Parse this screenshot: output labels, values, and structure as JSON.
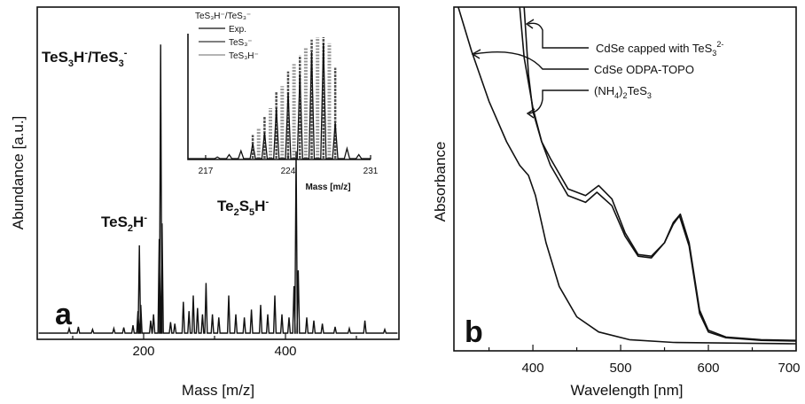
{
  "chart_data": [
    {
      "type": "line",
      "panel_label": "a",
      "xlabel": "Mass [m/z]",
      "ylabel": "Abundance [a.u.]",
      "xlim": [
        50,
        560
      ],
      "ylim": [
        0,
        1.0
      ],
      "x_ticks": [
        "200",
        "400"
      ],
      "x_tick_values": [
        200,
        400
      ],
      "series": [
        {
          "values": [
            {
              "x": 95,
              "y": 0.015
            },
            {
              "x": 108,
              "y": 0.02
            },
            {
              "x": 128,
              "y": 0.012
            },
            {
              "x": 158,
              "y": 0.015
            },
            {
              "x": 172,
              "y": 0.018
            },
            {
              "x": 185,
              "y": 0.025
            },
            {
              "x": 192,
              "y": 0.07
            },
            {
              "x": 194,
              "y": 0.28
            },
            {
              "x": 196,
              "y": 0.09
            },
            {
              "x": 210,
              "y": 0.04
            },
            {
              "x": 214,
              "y": 0.06
            },
            {
              "x": 222,
              "y": 0.3
            },
            {
              "x": 224,
              "y": 0.92
            },
            {
              "x": 226,
              "y": 0.35
            },
            {
              "x": 238,
              "y": 0.035
            },
            {
              "x": 244,
              "y": 0.03
            },
            {
              "x": 256,
              "y": 0.1
            },
            {
              "x": 264,
              "y": 0.07
            },
            {
              "x": 270,
              "y": 0.12
            },
            {
              "x": 276,
              "y": 0.08
            },
            {
              "x": 283,
              "y": 0.06
            },
            {
              "x": 288,
              "y": 0.16
            },
            {
              "x": 297,
              "y": 0.06
            },
            {
              "x": 306,
              "y": 0.05
            },
            {
              "x": 320,
              "y": 0.12
            },
            {
              "x": 330,
              "y": 0.06
            },
            {
              "x": 342,
              "y": 0.05
            },
            {
              "x": 352,
              "y": 0.075
            },
            {
              "x": 365,
              "y": 0.09
            },
            {
              "x": 375,
              "y": 0.06
            },
            {
              "x": 385,
              "y": 0.12
            },
            {
              "x": 395,
              "y": 0.06
            },
            {
              "x": 405,
              "y": 0.05
            },
            {
              "x": 412,
              "y": 0.15
            },
            {
              "x": 415,
              "y": 0.58
            },
            {
              "x": 418,
              "y": 0.2
            },
            {
              "x": 430,
              "y": 0.05
            },
            {
              "x": 440,
              "y": 0.04
            },
            {
              "x": 452,
              "y": 0.03
            },
            {
              "x": 470,
              "y": 0.02
            },
            {
              "x": 490,
              "y": 0.015
            },
            {
              "x": 512,
              "y": 0.04
            },
            {
              "x": 540,
              "y": 0.012
            }
          ]
        }
      ],
      "annotations": [
        {
          "text_main": "TeS",
          "sub1": "3",
          "mid": "H",
          "sup1": "-",
          "text_sep": "/TeS",
          "sub2": "3",
          "sup2": "-",
          "x": 224
        },
        {
          "text_main": "TeS",
          "sub1": "2",
          "mid": "H",
          "sup1": "-",
          "x": 194
        },
        {
          "text_main": "Te",
          "sub1": "2",
          "mid": "S",
          "sub2": "5",
          "tail": "H",
          "sup1": "-",
          "x": 415
        }
      ],
      "inset": {
        "title": "TeS₃H⁻/TeS₃⁻",
        "xlabel": "Mass [m/z]",
        "xlim": [
          215.5,
          231
        ],
        "x_ticks": [
          "217",
          "224",
          "231"
        ],
        "x_tick_values": [
          217,
          224,
          231
        ],
        "legend": [
          "Exp.",
          "TeS₃⁻",
          "TeS₃H⁻"
        ],
        "exp_values": [
          {
            "x": 218,
            "y": 0.02
          },
          {
            "x": 219,
            "y": 0.04
          },
          {
            "x": 220,
            "y": 0.07
          },
          {
            "x": 221,
            "y": 0.13
          },
          {
            "x": 222,
            "y": 0.22
          },
          {
            "x": 223,
            "y": 0.42
          },
          {
            "x": 224,
            "y": 0.55
          },
          {
            "x": 225,
            "y": 0.7
          },
          {
            "x": 226,
            "y": 0.88
          },
          {
            "x": 227,
            "y": 0.95
          },
          {
            "x": 228,
            "y": 0.3
          },
          {
            "x": 229,
            "y": 0.09
          },
          {
            "x": 230,
            "y": 0.04
          }
        ],
        "tes3_values": [
          {
            "x": 221,
            "y": 0.2
          },
          {
            "x": 222,
            "y": 0.35
          },
          {
            "x": 223,
            "y": 0.55
          },
          {
            "x": 224,
            "y": 0.72
          },
          {
            "x": 225,
            "y": 0.85
          },
          {
            "x": 226,
            "y": 0.98
          },
          {
            "x": 227,
            "y": 1.0
          },
          {
            "x": 228,
            "y": 0.75
          }
        ],
        "tes3h_values": [
          {
            "x": 221.5,
            "y": 0.25
          },
          {
            "x": 222.5,
            "y": 0.42
          },
          {
            "x": 223.5,
            "y": 0.6
          },
          {
            "x": 224.5,
            "y": 0.78
          },
          {
            "x": 225.5,
            "y": 0.92
          },
          {
            "x": 226.5,
            "y": 1.0
          },
          {
            "x": 227.5,
            "y": 0.95
          }
        ]
      }
    },
    {
      "type": "line",
      "panel_label": "b",
      "xlabel": "Wavelength [nm]",
      "ylabel": "Absorbance",
      "xlim": [
        310,
        700
      ],
      "ylim": [
        0,
        1.0
      ],
      "x_ticks": [
        "400",
        "500",
        "600",
        "700"
      ],
      "x_tick_values": [
        400,
        500,
        600,
        700
      ],
      "series": [
        {
          "name": "CdSe capped with TeS₃²⁻",
          "values": [
            {
              "x": 390,
              "y": 1.0
            },
            {
              "x": 395,
              "y": 0.8
            },
            {
              "x": 400,
              "y": 0.69
            },
            {
              "x": 410,
              "y": 0.6
            },
            {
              "x": 420,
              "y": 0.55
            },
            {
              "x": 440,
              "y": 0.46
            },
            {
              "x": 460,
              "y": 0.44
            },
            {
              "x": 475,
              "y": 0.47
            },
            {
              "x": 490,
              "y": 0.43
            },
            {
              "x": 505,
              "y": 0.33
            },
            {
              "x": 520,
              "y": 0.265
            },
            {
              "x": 535,
              "y": 0.26
            },
            {
              "x": 550,
              "y": 0.3
            },
            {
              "x": 560,
              "y": 0.36
            },
            {
              "x": 568,
              "y": 0.385
            },
            {
              "x": 578,
              "y": 0.3
            },
            {
              "x": 590,
              "y": 0.1
            },
            {
              "x": 600,
              "y": 0.04
            },
            {
              "x": 620,
              "y": 0.02
            },
            {
              "x": 660,
              "y": 0.012
            },
            {
              "x": 700,
              "y": 0.01
            }
          ]
        },
        {
          "name": "CdSe ODPA-TOPO",
          "values": [
            {
              "x": 385,
              "y": 1.0
            },
            {
              "x": 390,
              "y": 0.85
            },
            {
              "x": 400,
              "y": 0.7
            },
            {
              "x": 410,
              "y": 0.6
            },
            {
              "x": 420,
              "y": 0.53
            },
            {
              "x": 440,
              "y": 0.44
            },
            {
              "x": 460,
              "y": 0.42
            },
            {
              "x": 473,
              "y": 0.45
            },
            {
              "x": 490,
              "y": 0.41
            },
            {
              "x": 505,
              "y": 0.32
            },
            {
              "x": 520,
              "y": 0.26
            },
            {
              "x": 535,
              "y": 0.255
            },
            {
              "x": 550,
              "y": 0.3
            },
            {
              "x": 560,
              "y": 0.355
            },
            {
              "x": 567,
              "y": 0.38
            },
            {
              "x": 578,
              "y": 0.29
            },
            {
              "x": 590,
              "y": 0.09
            },
            {
              "x": 600,
              "y": 0.035
            },
            {
              "x": 620,
              "y": 0.018
            },
            {
              "x": 660,
              "y": 0.01
            },
            {
              "x": 700,
              "y": 0.008
            }
          ]
        },
        {
          "name": "(NH₄)₂TeS₃",
          "values": [
            {
              "x": 315,
              "y": 1.0
            },
            {
              "x": 330,
              "y": 0.87
            },
            {
              "x": 350,
              "y": 0.72
            },
            {
              "x": 370,
              "y": 0.6
            },
            {
              "x": 385,
              "y": 0.53
            },
            {
              "x": 395,
              "y": 0.5
            },
            {
              "x": 403,
              "y": 0.44
            },
            {
              "x": 415,
              "y": 0.3
            },
            {
              "x": 430,
              "y": 0.17
            },
            {
              "x": 450,
              "y": 0.08
            },
            {
              "x": 475,
              "y": 0.035
            },
            {
              "x": 510,
              "y": 0.012
            },
            {
              "x": 560,
              "y": 0.004
            },
            {
              "x": 700,
              "y": 0.0
            }
          ]
        }
      ],
      "legend": [
        {
          "main": "CdSe capped with TeS",
          "sub": "3",
          "sup": "2-"
        },
        {
          "main": "CdSe ODPA-TOPO"
        },
        {
          "pre": "(NH",
          "sub1": "4",
          "mid": ")",
          "sub2": "2",
          "main": "TeS",
          "sub3": "3"
        }
      ]
    }
  ]
}
